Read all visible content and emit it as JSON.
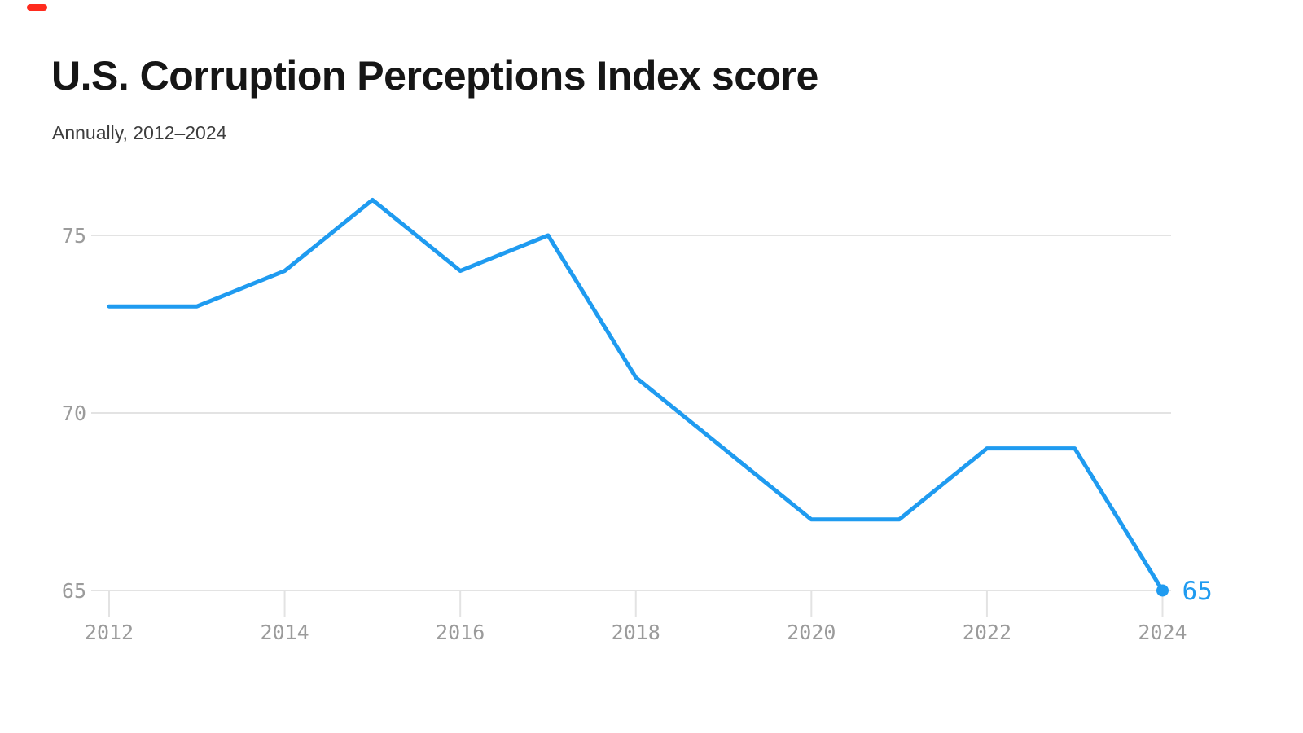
{
  "brand": {
    "dash_color": "#ff2b1e"
  },
  "header": {
    "title": "U.S. Corruption Perceptions Index score",
    "subtitle": "Annually, 2012–2024"
  },
  "chart_data": {
    "type": "line",
    "title": "U.S. Corruption Perceptions Index score",
    "subtitle": "Annually, 2012–2024",
    "x": [
      2012,
      2013,
      2014,
      2015,
      2016,
      2017,
      2018,
      2019,
      2020,
      2021,
      2022,
      2023,
      2024
    ],
    "values": [
      73,
      73,
      74,
      76,
      74,
      75,
      71,
      69,
      67,
      67,
      69,
      69,
      65
    ],
    "xticks": [
      "2012",
      "2014",
      "2016",
      "2018",
      "2020",
      "2022",
      "2024"
    ],
    "yticks": [
      "65",
      "70",
      "75"
    ],
    "xlim": [
      2012,
      2024
    ],
    "ylim": [
      65,
      76.5
    ],
    "grid": "horizontal",
    "legend": "none",
    "end_label": "65",
    "line_color": "#1f9bf0",
    "grid_color": "#e3e3e3",
    "axis_label_color": "#9b9b9b"
  }
}
